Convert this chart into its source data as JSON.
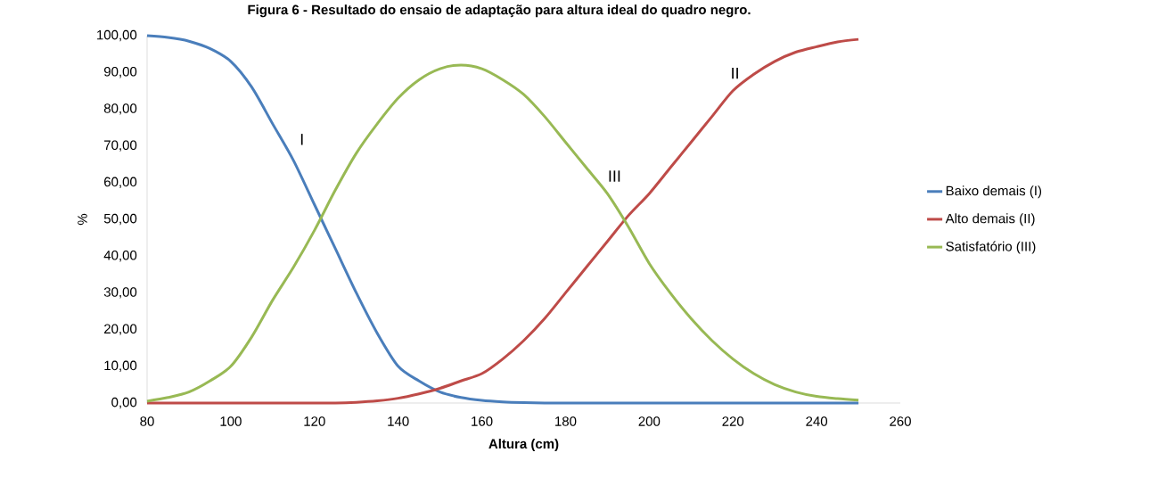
{
  "chart_data": {
    "type": "line",
    "title": "Figura 6 - Resultado do ensaio de adaptação para altura ideal do quadro negro.",
    "xlabel": "Altura (cm)",
    "ylabel": "%",
    "x": [
      80,
      85,
      90,
      95,
      100,
      105,
      110,
      115,
      120,
      125,
      130,
      135,
      140,
      145,
      150,
      155,
      160,
      165,
      170,
      175,
      180,
      185,
      190,
      195,
      200,
      205,
      210,
      215,
      220,
      225,
      230,
      235,
      240,
      245,
      250
    ],
    "series": [
      {
        "name": "Baixo demais (I)",
        "color": "#4a7ebb",
        "values": [
          100,
          99.5,
          98.5,
          96.5,
          93,
          86,
          76,
          66,
          54,
          42,
          30,
          19,
          10,
          6,
          3,
          1.5,
          0.7,
          0.3,
          0.1,
          0,
          0,
          0,
          0,
          0,
          0,
          0,
          0,
          0,
          0,
          0,
          0,
          0,
          0,
          0,
          0
        ]
      },
      {
        "name": "Alto demais (II)",
        "color": "#be4b48",
        "values": [
          0,
          0,
          0,
          0,
          0,
          0,
          0,
          0,
          0,
          0,
          0.2,
          0.6,
          1.3,
          2.5,
          4,
          6,
          8,
          12,
          17,
          23,
          30,
          37,
          44,
          51,
          57,
          64,
          71,
          78,
          85,
          89.5,
          93,
          95.5,
          97,
          98.3,
          99
        ]
      },
      {
        "name": "Satisfatório (III)",
        "color": "#98b954",
        "values": [
          0.5,
          1.5,
          3,
          6,
          10,
          18,
          28,
          37,
          47,
          58,
          68,
          76,
          83,
          88,
          91,
          92,
          91,
          88,
          84,
          78,
          71,
          64,
          57,
          48,
          38,
          30,
          23,
          17,
          12,
          8,
          5,
          3,
          1.8,
          1.2,
          0.8
        ]
      }
    ],
    "annotations": [
      "I",
      "II",
      "III"
    ],
    "xlim": [
      80,
      260
    ],
    "xticks": [
      80,
      100,
      120,
      140,
      160,
      180,
      200,
      220,
      240,
      260
    ],
    "ylim": [
      0,
      100
    ],
    "yticks": [
      {
        "value": 0,
        "label": "0,00"
      },
      {
        "value": 10,
        "label": "10,00"
      },
      {
        "value": 20,
        "label": "20,00"
      },
      {
        "value": 30,
        "label": "30,00"
      },
      {
        "value": 40,
        "label": "40,00"
      },
      {
        "value": 50,
        "label": "50,00"
      },
      {
        "value": 60,
        "label": "60,00"
      },
      {
        "value": 70,
        "label": "70,00"
      },
      {
        "value": 80,
        "label": "80,00"
      },
      {
        "value": 90,
        "label": "90,00"
      },
      {
        "value": 100,
        "label": "100,00"
      }
    ],
    "grid": false,
    "legend": "right",
    "marker": "none",
    "line_style": "solid"
  }
}
